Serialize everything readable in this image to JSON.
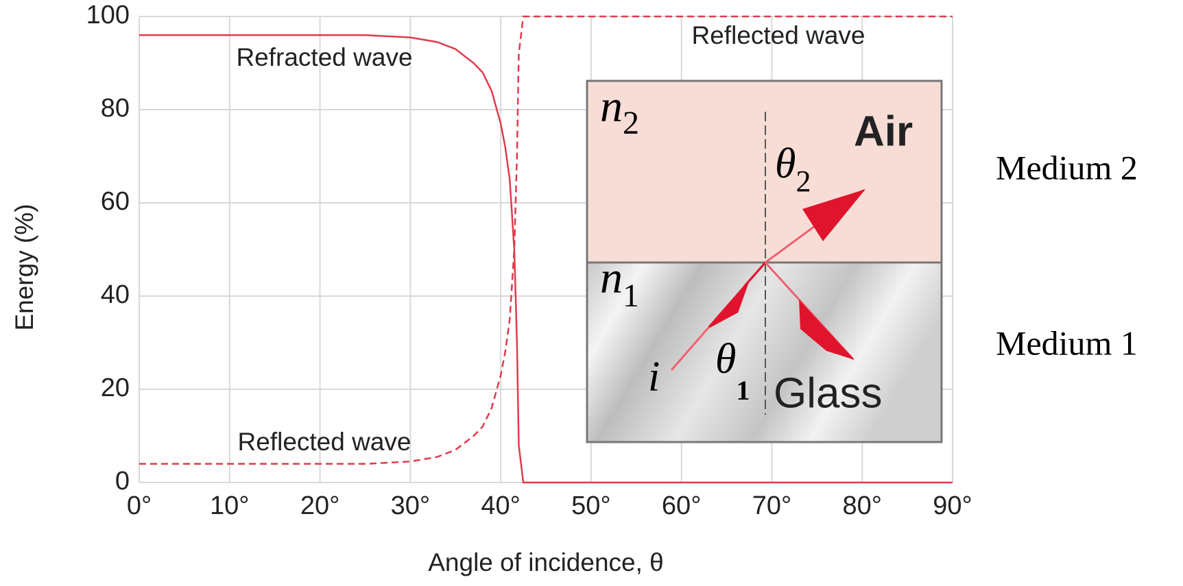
{
  "chart_data": {
    "type": "line",
    "xlabel": "Angle of incidence, θ",
    "ylabel": "Energy (%)",
    "x": [
      0,
      10,
      20,
      25,
      30,
      33,
      35,
      37,
      38,
      39,
      40,
      40.5,
      41,
      41.5,
      41.8,
      42,
      42.5,
      90
    ],
    "series": [
      {
        "name": "Refracted wave",
        "color": "#e03a4c",
        "dash": false,
        "values": [
          96,
          96,
          96,
          96,
          95.5,
          94.5,
          93,
          90,
          88,
          84,
          77,
          72,
          65,
          50,
          30,
          8,
          0,
          0
        ]
      },
      {
        "name": "Reflected wave",
        "color": "#e03a4c",
        "dash": true,
        "values": [
          4,
          4,
          4,
          4,
          4.5,
          5.5,
          7,
          10,
          12,
          16,
          23,
          28,
          35,
          50,
          70,
          92,
          100,
          100
        ]
      }
    ],
    "annotations": [
      "Refracted wave",
      "Reflected wave",
      "Reflected wave"
    ],
    "xlim": [
      0,
      90
    ],
    "ylim": [
      0,
      100
    ],
    "xticks": [
      {
        "value": 0,
        "label": "0°"
      },
      {
        "value": 10,
        "label": "10°"
      },
      {
        "value": 20,
        "label": "20°"
      },
      {
        "value": 30,
        "label": "30°"
      },
      {
        "value": 40,
        "label": "40°"
      },
      {
        "value": 50,
        "label": "50°"
      },
      {
        "value": 60,
        "label": "60°"
      },
      {
        "value": 70,
        "label": "70°"
      },
      {
        "value": 80,
        "label": "80°"
      },
      {
        "value": 90,
        "label": "90°"
      }
    ],
    "yticks": [
      0,
      20,
      40,
      60,
      80,
      100
    ],
    "grid": true,
    "inset": {
      "n2": {
        "text": "n",
        "sub": "2"
      },
      "air": "Air",
      "theta2": {
        "text": "θ",
        "sub": "2"
      },
      "n1": {
        "text": "n",
        "sub": "1"
      },
      "i": "i",
      "theta1": {
        "text": "θ",
        "sub": "1"
      },
      "glass": "Glass",
      "medium2": "Medium 2",
      "medium1": "Medium 1"
    }
  }
}
